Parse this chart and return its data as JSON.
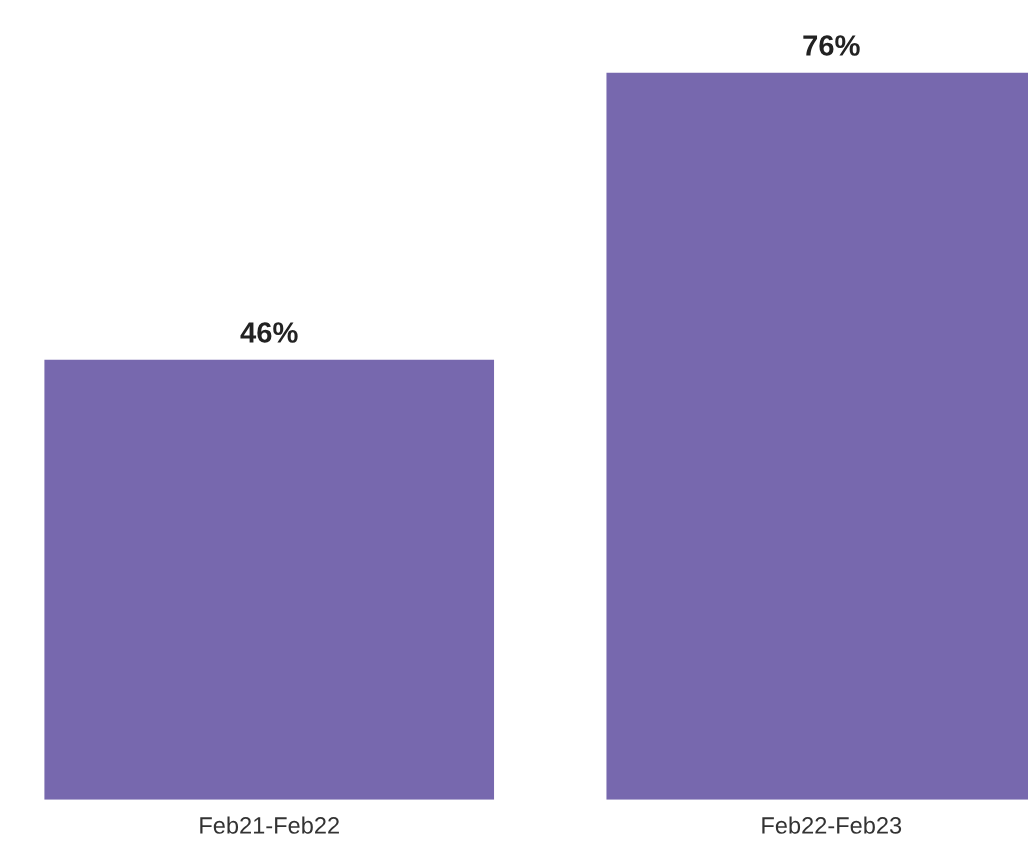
{
  "chart_data": {
    "type": "bar",
    "categories": [
      "Feb21-Feb22",
      "Feb22-Feb23"
    ],
    "values": [
      46,
      76
    ],
    "value_labels": [
      "46%",
      "76%"
    ],
    "color": "#7768ae",
    "grid": false,
    "legend": false
  }
}
